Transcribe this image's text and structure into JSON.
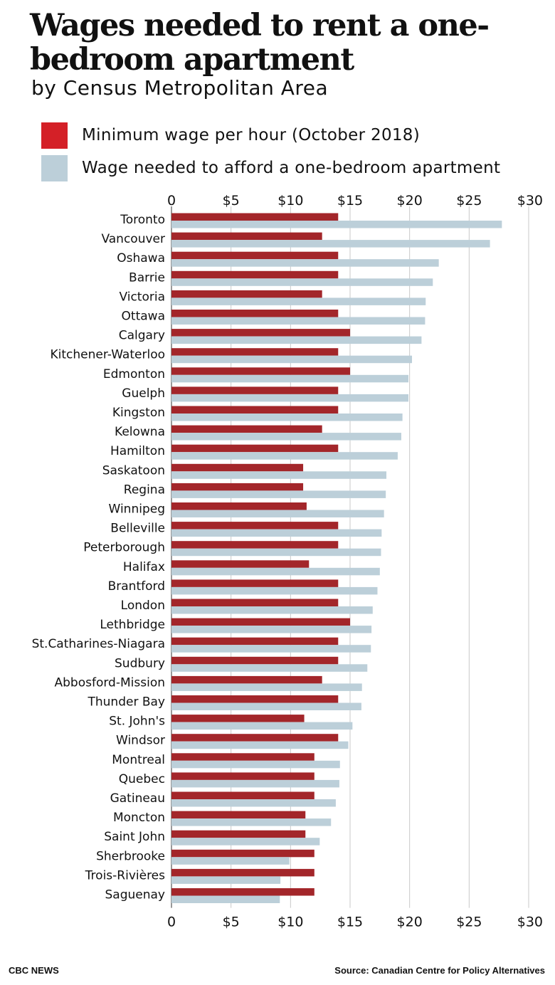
{
  "chart_data": {
    "type": "bar",
    "orientation": "horizontal",
    "title": "Wages needed to rent a one-bedroom apartment",
    "subtitle": "by Census Metropolitan Area",
    "categories": [
      "Toronto",
      "Vancouver",
      "Oshawa",
      "Barrie",
      "Victoria",
      "Ottawa",
      "Calgary",
      "Kitchener-Waterloo",
      "Edmonton",
      "Guelph",
      "Kingston",
      "Kelowna",
      "Hamilton",
      "Saskatoon",
      "Regina",
      "Winnipeg",
      "Belleville",
      "Peterborough",
      "Halifax",
      "Brantford",
      "London",
      "Lethbridge",
      "St.Catharines-Niagara",
      "Sudbury",
      "Abbosford-Mission",
      "Thunder Bay",
      "St. John's",
      "Windsor",
      "Montreal",
      "Quebec",
      "Gatineau",
      "Moncton",
      "Saint John",
      "Sherbrooke",
      "Trois-Rivières",
      "Saguenay"
    ],
    "series": [
      {
        "name": "Minimum wage per hour (October 2018)",
        "color": "#a3262a",
        "values": [
          14,
          12.65,
          14,
          14,
          12.65,
          14,
          15,
          14,
          15,
          14,
          14,
          12.65,
          14,
          11.06,
          11.06,
          11.35,
          14,
          14,
          11.55,
          14,
          14,
          15,
          14,
          14,
          12.65,
          14,
          11.15,
          14,
          12,
          12,
          12,
          11.25,
          11.25,
          12,
          12,
          12
        ]
      },
      {
        "name": "Wage needed to afford a one-bedroom apartment",
        "color": "#bccfd9",
        "values": [
          27.75,
          26.75,
          22.45,
          21.95,
          21.35,
          21.3,
          21,
          20.2,
          19.9,
          19.9,
          19.4,
          19.3,
          19,
          18.05,
          18,
          17.85,
          17.65,
          17.6,
          17.5,
          17.3,
          16.9,
          16.8,
          16.75,
          16.45,
          16,
          15.95,
          15.2,
          14.85,
          14.15,
          14.1,
          13.8,
          13.4,
          12.45,
          9.9,
          9.15,
          9.1
        ]
      }
    ],
    "xlim": [
      0,
      30
    ],
    "x_ticks": [
      "0",
      "$5",
      "$10",
      "$15",
      "$20",
      "$25",
      "$30"
    ],
    "grid": true,
    "legend_position": "top-left"
  },
  "legend": {
    "items": [
      {
        "label": "Minimum wage per hour (October 2018)",
        "color": "#d42027"
      },
      {
        "label": "Wage needed to afford a one-bedroom apartment",
        "color": "#bccfd9"
      }
    ]
  },
  "footer": {
    "credit": "CBC NEWS",
    "source": "Source: Canadian Centre for Policy Alternatives"
  }
}
